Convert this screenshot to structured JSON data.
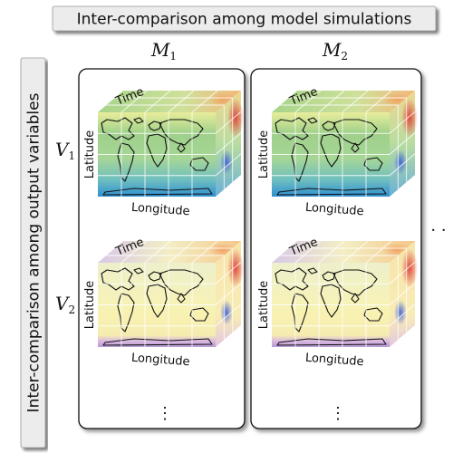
{
  "top_banner": "Inter-comparison among model simulations",
  "side_banner": "Inter-comparison among output variables",
  "models": [
    {
      "label": "M",
      "subscript": "1"
    },
    {
      "label": "M",
      "subscript": "2"
    }
  ],
  "variables": [
    {
      "label": "V",
      "subscript": "1"
    },
    {
      "label": "V",
      "subscript": "2"
    }
  ],
  "axis_labels": {
    "time": "Time",
    "latitude": "Latitude",
    "longitude": "Longitude"
  },
  "continuation": {
    "vertical": "⋮",
    "horizontal": "·  ·"
  },
  "colors": {
    "banner_fill": "#ececec",
    "banner_shadow": "#6e6e6e",
    "panel_border": "#111111",
    "map_top": "#3a9a8a",
    "map_mid": "#a8d080",
    "map_bottom": "#f4e994",
    "map_v2_top": "#f0f2c2",
    "map_v2_bottom": "#fbf3a8",
    "purple_band": "#c6a6e0",
    "blue_band": "#3a8fd0",
    "hot_red": "#e0413a",
    "cool_blue": "#4a6ad8"
  }
}
